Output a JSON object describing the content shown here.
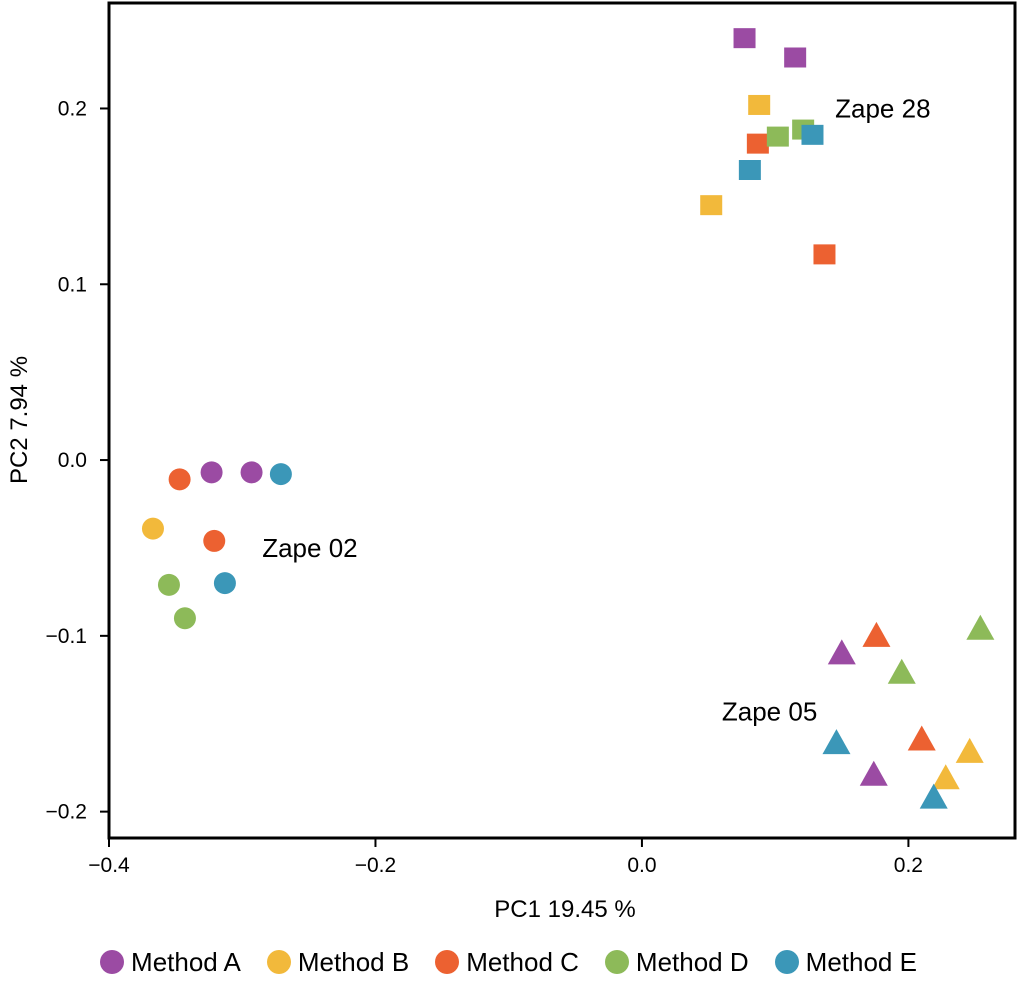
{
  "chart_data": {
    "type": "scatter",
    "xlabel": "PC1 19.45 %",
    "ylabel": "PC2 7.94 %",
    "xlim": [
      -0.4,
      0.28
    ],
    "ylim": [
      -0.215,
      0.26
    ],
    "x_ticks": [
      -0.4,
      -0.2,
      0.0,
      0.2
    ],
    "x_tick_labels": [
      "−0.4",
      "−0.2",
      "0.0",
      "0.2"
    ],
    "y_ticks": [
      -0.2,
      -0.1,
      0.0,
      0.1,
      0.2
    ],
    "y_tick_labels": [
      "−0.2",
      "−0.1",
      "0.0",
      "0.1",
      "0.2"
    ],
    "grid": false,
    "legend_position": "bottom",
    "colors": {
      "Method A": "#9b4ba3",
      "Method B": "#f2b93b",
      "Method C": "#ec6131",
      "Method D": "#8dba59",
      "Method E": "#3b97b8"
    },
    "groups": [
      {
        "name": "Zape 02",
        "marker": "circle"
      },
      {
        "name": "Zape 28",
        "marker": "square"
      },
      {
        "name": "Zape 05",
        "marker": "triangle"
      }
    ],
    "annotations": [
      {
        "text": "Zape 28",
        "x": 0.145,
        "y": 0.2
      },
      {
        "text": "Zape 02",
        "x": -0.285,
        "y": -0.05
      },
      {
        "text": "Zape 05",
        "x": 0.06,
        "y": -0.143
      }
    ],
    "series": [
      {
        "name": "Method A",
        "points": [
          {
            "x": -0.323,
            "y": -0.007,
            "group": "Zape 02"
          },
          {
            "x": -0.293,
            "y": -0.007,
            "group": "Zape 02"
          },
          {
            "x": 0.077,
            "y": 0.24,
            "group": "Zape 28"
          },
          {
            "x": 0.115,
            "y": 0.229,
            "group": "Zape 28"
          },
          {
            "x": 0.15,
            "y": -0.11,
            "group": "Zape 05"
          },
          {
            "x": 0.174,
            "y": -0.179,
            "group": "Zape 05"
          }
        ]
      },
      {
        "name": "Method B",
        "points": [
          {
            "x": -0.367,
            "y": -0.039,
            "group": "Zape 02"
          },
          {
            "x": 0.088,
            "y": 0.202,
            "group": "Zape 28"
          },
          {
            "x": 0.052,
            "y": 0.145,
            "group": "Zape 28"
          },
          {
            "x": 0.228,
            "y": -0.181,
            "group": "Zape 05"
          },
          {
            "x": 0.246,
            "y": -0.166,
            "group": "Zape 05"
          }
        ]
      },
      {
        "name": "Method C",
        "points": [
          {
            "x": -0.347,
            "y": -0.011,
            "group": "Zape 02"
          },
          {
            "x": -0.321,
            "y": -0.046,
            "group": "Zape 02"
          },
          {
            "x": 0.087,
            "y": 0.18,
            "group": "Zape 28"
          },
          {
            "x": 0.137,
            "y": 0.117,
            "group": "Zape 28"
          },
          {
            "x": 0.176,
            "y": -0.1,
            "group": "Zape 05"
          },
          {
            "x": 0.21,
            "y": -0.159,
            "group": "Zape 05"
          }
        ]
      },
      {
        "name": "Method D",
        "points": [
          {
            "x": -0.355,
            "y": -0.071,
            "group": "Zape 02"
          },
          {
            "x": -0.343,
            "y": -0.09,
            "group": "Zape 02"
          },
          {
            "x": 0.102,
            "y": 0.184,
            "group": "Zape 28"
          },
          {
            "x": 0.121,
            "y": 0.188,
            "group": "Zape 28"
          },
          {
            "x": 0.195,
            "y": -0.121,
            "group": "Zape 05"
          },
          {
            "x": 0.254,
            "y": -0.096,
            "group": "Zape 05"
          }
        ]
      },
      {
        "name": "Method E",
        "points": [
          {
            "x": -0.271,
            "y": -0.008,
            "group": "Zape 02"
          },
          {
            "x": -0.313,
            "y": -0.07,
            "group": "Zape 02"
          },
          {
            "x": 0.128,
            "y": 0.185,
            "group": "Zape 28"
          },
          {
            "x": 0.081,
            "y": 0.165,
            "group": "Zape 28"
          },
          {
            "x": 0.146,
            "y": -0.161,
            "group": "Zape 05"
          },
          {
            "x": 0.219,
            "y": -0.192,
            "group": "Zape 05"
          }
        ]
      }
    ]
  },
  "legend": {
    "items": [
      {
        "label": "Method A",
        "color": "#9b4ba3"
      },
      {
        "label": "Method B",
        "color": "#f2b93b"
      },
      {
        "label": "Method C",
        "color": "#ec6131"
      },
      {
        "label": "Method D",
        "color": "#8dba59"
      },
      {
        "label": "Method E",
        "color": "#3b97b8"
      }
    ]
  }
}
